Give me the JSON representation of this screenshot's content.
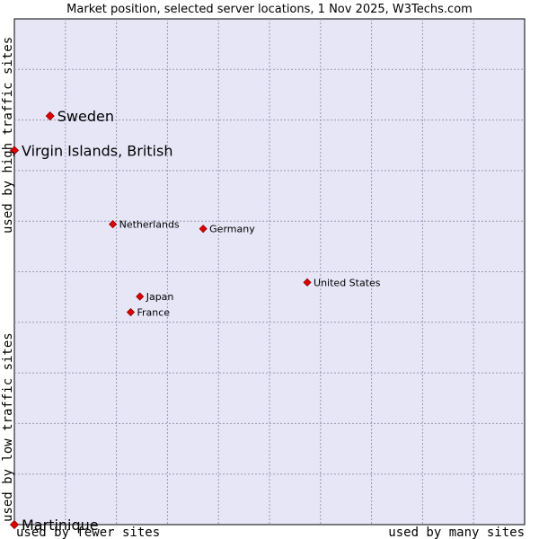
{
  "chart_data": {
    "type": "scatter",
    "title": "Market position, selected server locations, 1 Nov 2025, W3Techs.com",
    "xlabel_left": "used by fewer sites",
    "xlabel_right": "used by many sites",
    "ylabel_top": "used by high traffic sites",
    "ylabel_bottom": "used by low traffic sites",
    "xlim": [
      0,
      100
    ],
    "ylim": [
      0,
      100
    ],
    "grid": true,
    "points": [
      {
        "name": "Sweden",
        "x": 7.0,
        "y": 80.8,
        "label_size": "large"
      },
      {
        "name": "Virgin Islands, British",
        "x": 0.0,
        "y": 74.0,
        "label_size": "large"
      },
      {
        "name": "Netherlands",
        "x": 19.3,
        "y": 59.4,
        "label_size": "small"
      },
      {
        "name": "Germany",
        "x": 37.0,
        "y": 58.5,
        "label_size": "small"
      },
      {
        "name": "United States",
        "x": 57.4,
        "y": 47.9,
        "label_size": "small"
      },
      {
        "name": "Japan",
        "x": 24.6,
        "y": 45.1,
        "label_size": "small"
      },
      {
        "name": "France",
        "x": 22.8,
        "y": 42.0,
        "label_size": "small"
      },
      {
        "name": "Martinique",
        "x": 0.0,
        "y": 0.0,
        "label_size": "large"
      }
    ]
  },
  "colors": {
    "plot_background": "#e6e6f7",
    "grid": "#9a9ab0",
    "marker_fill": "#e00000",
    "marker_stroke": "#8b0000",
    "plot_border": "#000000"
  }
}
